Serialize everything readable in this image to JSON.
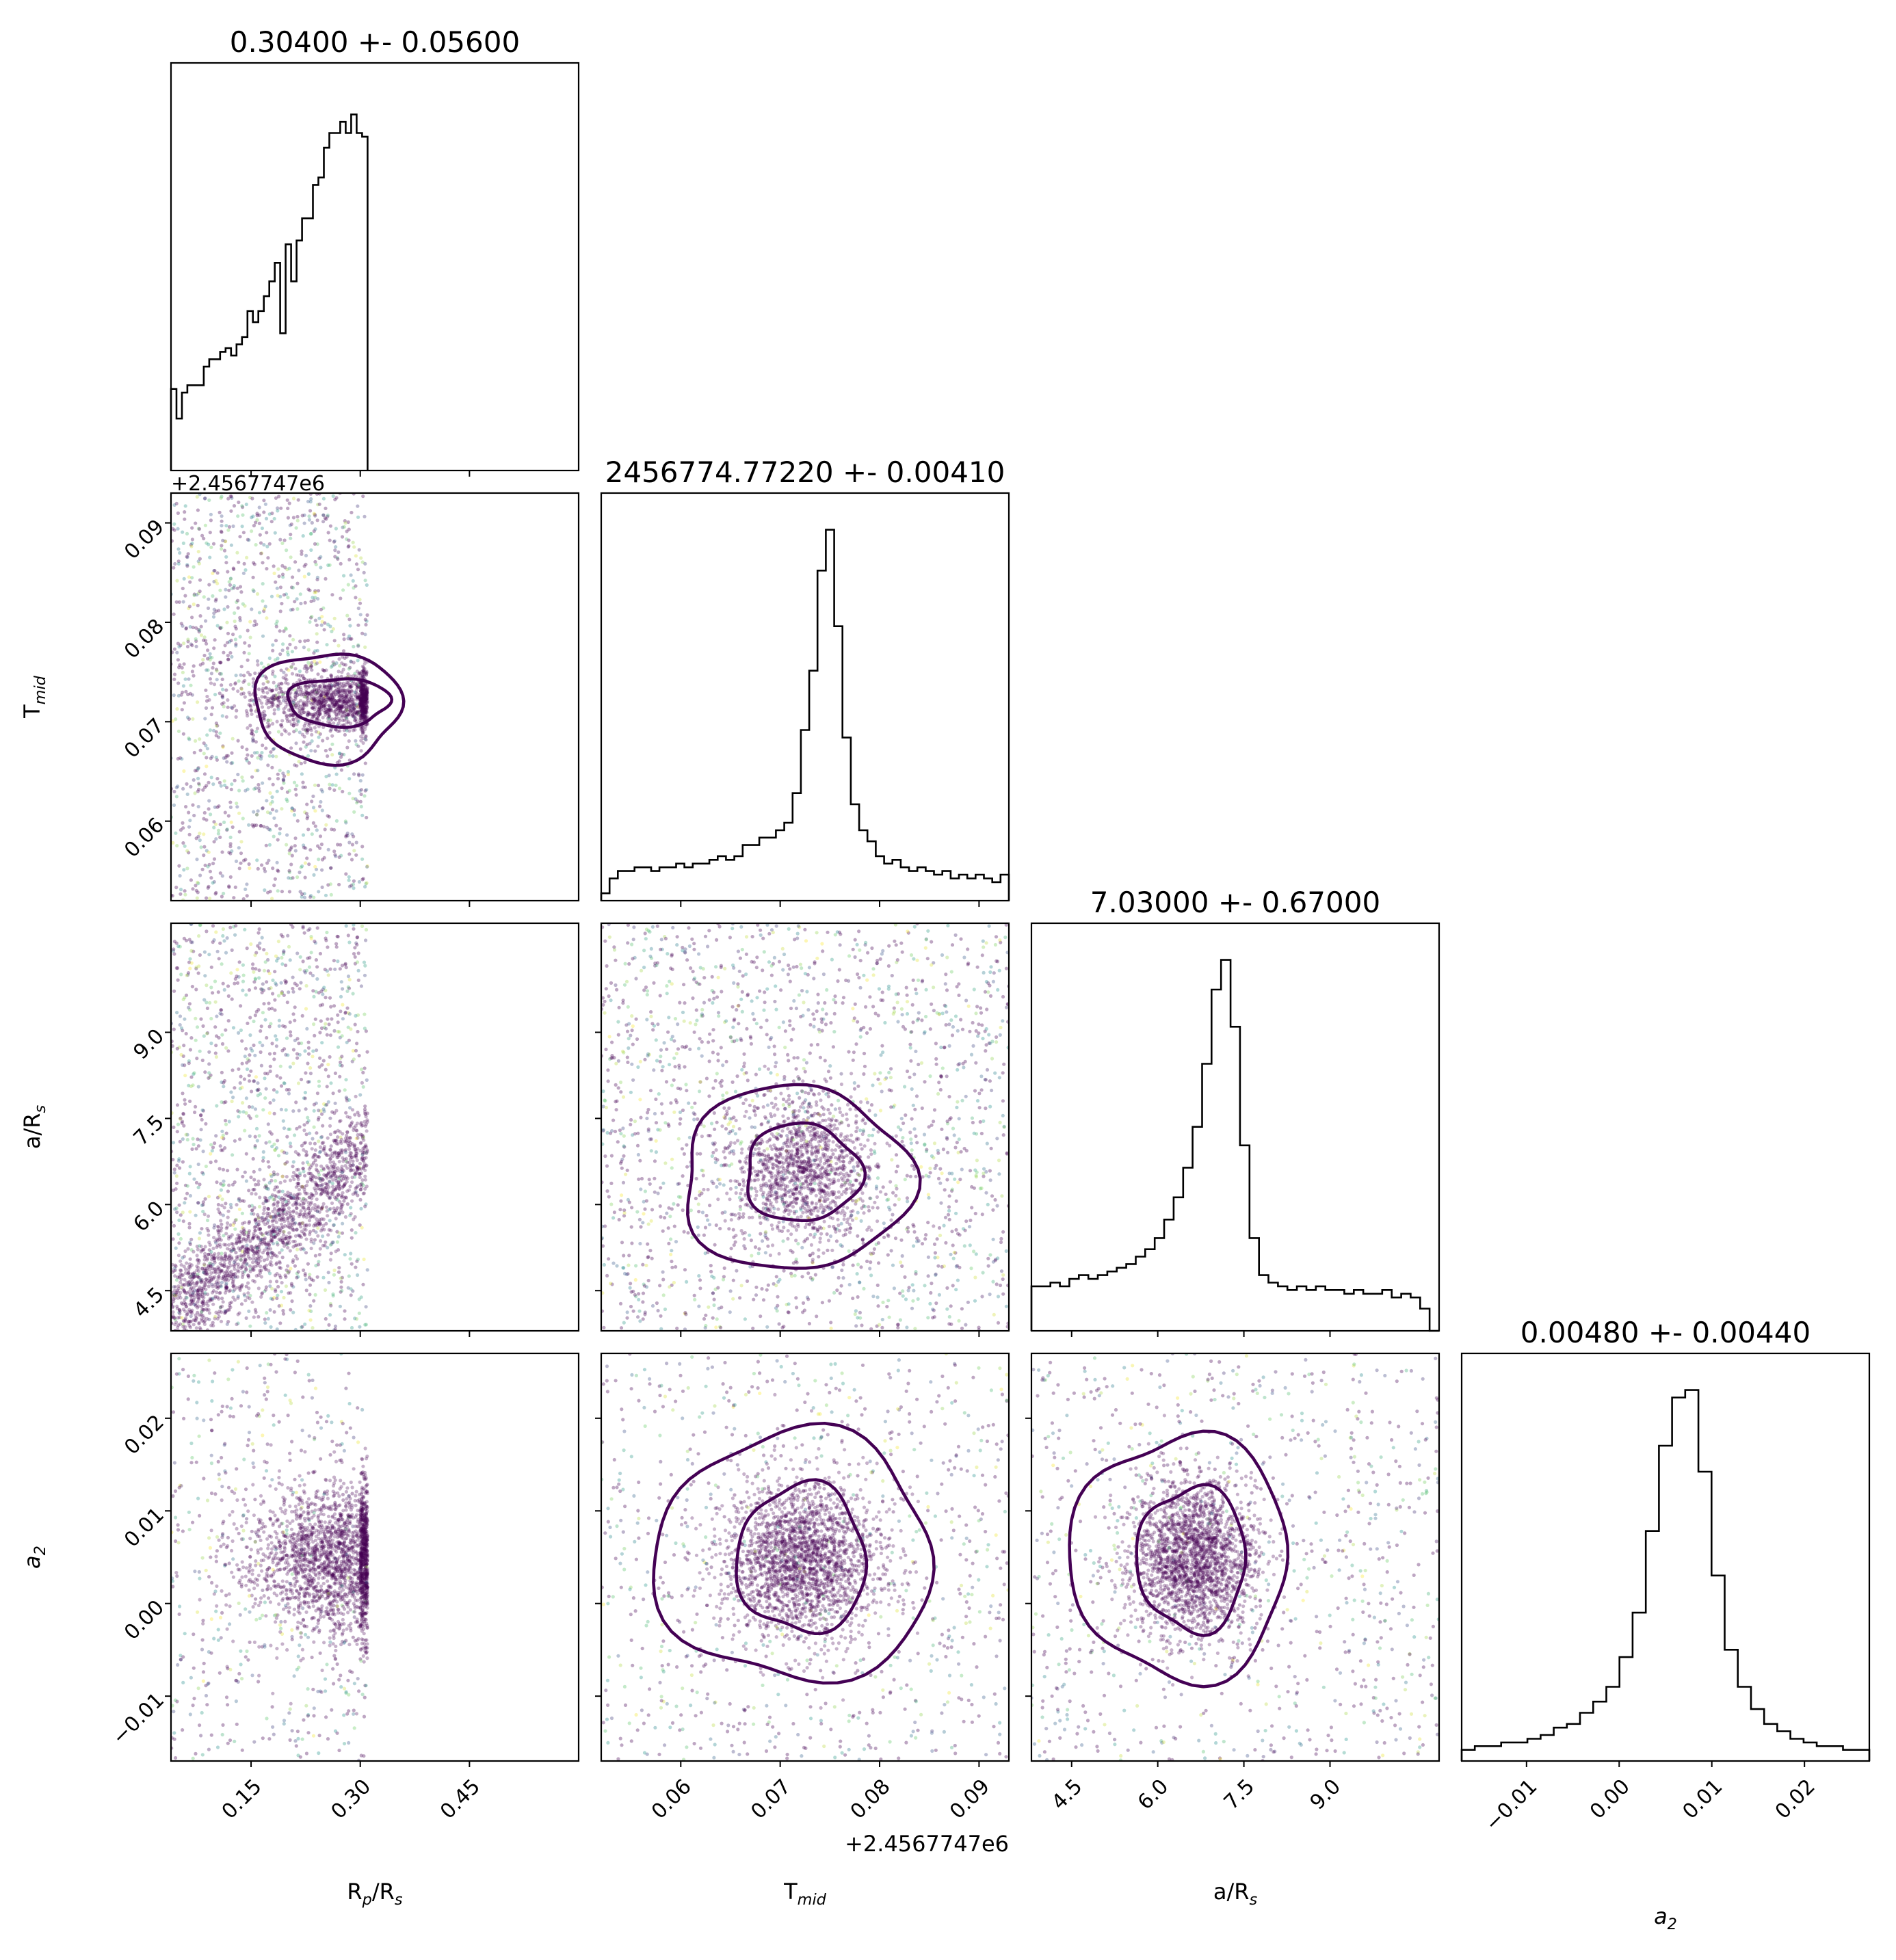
{
  "chart_data": {
    "type": "corner",
    "parameters": [
      {
        "key": "rp",
        "label": "R",
        "sub": "p",
        "label_tail": "/R",
        "tail_sub": "s",
        "title": "0.30400 +- 0.05600",
        "range": [
          0.04,
          0.6
        ],
        "ticks": [
          0.15,
          0.3,
          0.45
        ],
        "tick_labels": [
          "0.15",
          "0.30",
          "0.45"
        ],
        "offset": ""
      },
      {
        "key": "tmid",
        "label": "T",
        "sub": "mid",
        "label_tail": "",
        "tail_sub": "",
        "title": "2456774.77220 +- 0.00410",
        "range": [
          0.052,
          0.093
        ],
        "ticks": [
          0.06,
          0.07,
          0.08,
          0.09
        ],
        "tick_labels": [
          "0.06",
          "0.07",
          "0.08",
          "0.09"
        ],
        "offset": "+2.4567747e6"
      },
      {
        "key": "ars",
        "label": "a/R",
        "sub": "s",
        "label_tail": "",
        "tail_sub": "",
        "title": "7.03000 +- 0.67000",
        "range": [
          3.8,
          10.9
        ],
        "ticks": [
          4.5,
          6.0,
          7.5,
          9.0
        ],
        "tick_labels": [
          "4.5",
          "6.0",
          "7.5",
          "9.0"
        ],
        "offset": ""
      },
      {
        "key": "a2",
        "label": "a",
        "sub": "2",
        "label_tail": "",
        "tail_sub": "",
        "label_italic": true,
        "title": "0.00480 +- 0.00440",
        "range": [
          -0.017,
          0.027
        ],
        "ticks": [
          -0.01,
          0.0,
          0.01,
          0.02
        ],
        "tick_labels": [
          "−0.01",
          "0.00",
          "0.01",
          "0.02"
        ],
        "offset": ""
      }
    ],
    "histograms": [
      {
        "param": "rp",
        "bin_range": [
          0.04,
          0.31
        ],
        "counts": [
          0.22,
          0.14,
          0.21,
          0.23,
          0.23,
          0.23,
          0.28,
          0.3,
          0.3,
          0.32,
          0.33,
          0.31,
          0.34,
          0.36,
          0.43,
          0.4,
          0.43,
          0.47,
          0.51,
          0.56,
          0.37,
          0.61,
          0.51,
          0.62,
          0.68,
          0.68,
          0.77,
          0.79,
          0.87,
          0.91,
          0.91,
          0.94,
          0.91,
          0.96,
          0.91,
          0.9
        ]
      },
      {
        "param": "tmid",
        "bin_range": [
          0.052,
          0.093
        ],
        "counts": [
          0.02,
          0.06,
          0.08,
          0.08,
          0.09,
          0.09,
          0.08,
          0.09,
          0.09,
          0.1,
          0.09,
          0.1,
          0.1,
          0.11,
          0.12,
          0.11,
          0.12,
          0.15,
          0.15,
          0.17,
          0.17,
          0.19,
          0.21,
          0.29,
          0.46,
          0.62,
          0.89,
          1.0,
          0.74,
          0.44,
          0.26,
          0.19,
          0.16,
          0.12,
          0.1,
          0.11,
          0.09,
          0.08,
          0.09,
          0.08,
          0.07,
          0.08,
          0.06,
          0.07,
          0.06,
          0.07,
          0.06,
          0.05,
          0.07
        ]
      },
      {
        "param": "ars",
        "bin_range": [
          3.8,
          10.9
        ],
        "counts": [
          0.12,
          0.12,
          0.13,
          0.12,
          0.14,
          0.15,
          0.14,
          0.15,
          0.16,
          0.17,
          0.18,
          0.2,
          0.22,
          0.25,
          0.3,
          0.36,
          0.44,
          0.55,
          0.72,
          0.92,
          1.0,
          0.82,
          0.5,
          0.25,
          0.15,
          0.13,
          0.12,
          0.11,
          0.12,
          0.11,
          0.12,
          0.11,
          0.11,
          0.1,
          0.11,
          0.1,
          0.1,
          0.11,
          0.09,
          0.1,
          0.09,
          0.06,
          0.0
        ]
      },
      {
        "param": "a2",
        "bin_range": [
          -0.017,
          0.027
        ],
        "counts": [
          0.03,
          0.04,
          0.04,
          0.05,
          0.05,
          0.06,
          0.07,
          0.09,
          0.1,
          0.13,
          0.16,
          0.2,
          0.28,
          0.4,
          0.62,
          0.85,
          0.98,
          1.0,
          0.78,
          0.5,
          0.3,
          0.2,
          0.14,
          0.1,
          0.08,
          0.06,
          0.05,
          0.04,
          0.04,
          0.03,
          0.03
        ]
      }
    ],
    "scatter": [
      {
        "x": "rp",
        "y": "tmid",
        "n_points": 2600,
        "x_span": [
          0.04,
          0.31
        ],
        "mu": [
          0.27,
          0.0722
        ],
        "sigma": [
          0.06,
          0.0015
        ],
        "bg_fraction": 0.5,
        "contours": [
          {
            "level": 1,
            "center": [
              0.27,
              0.072
            ],
            "radius": [
              0.07,
              0.0024
            ]
          },
          {
            "level": 2,
            "center": [
              0.255,
              0.0715
            ],
            "radius": [
              0.1,
              0.0055
            ]
          }
        ]
      },
      {
        "x": "rp",
        "y": "ars",
        "n_points": 2800,
        "x_span": [
          0.04,
          0.31
        ],
        "trend": {
          "slope": 10.5,
          "intercept": 3.7
        },
        "sigma": [
          0.06,
          0.45
        ],
        "bg_fraction": 0.45
      },
      {
        "x": "tmid",
        "y": "ars",
        "n_points": 3000,
        "mu": [
          0.0722,
          6.6
        ],
        "sigma": [
          0.0035,
          0.6
        ],
        "bg_fraction": 0.6,
        "contours": [
          {
            "level": 1,
            "center": [
              0.0722,
              6.55
            ],
            "radius": [
              0.0058,
              0.85
            ]
          },
          {
            "level": 2,
            "center": [
              0.0715,
              6.45
            ],
            "radius": [
              0.0115,
              1.6
            ]
          }
        ]
      },
      {
        "x": "rp",
        "y": "a2",
        "n_points": 2600,
        "x_span": [
          0.04,
          0.31
        ],
        "mu": [
          0.27,
          0.0048
        ],
        "sigma": [
          0.06,
          0.0042
        ],
        "bg_fraction": 0.2
      },
      {
        "x": "tmid",
        "y": "a2",
        "n_points": 3000,
        "mu": [
          0.0722,
          0.0048
        ],
        "sigma": [
          0.004,
          0.0042
        ],
        "bg_fraction": 0.3,
        "contours": [
          {
            "level": 1,
            "center": [
              0.0722,
              0.0048
            ],
            "radius": [
              0.0065,
              0.008
            ]
          },
          {
            "level": 2,
            "center": [
              0.0715,
              0.005
            ],
            "radius": [
              0.014,
              0.0135
            ]
          }
        ]
      },
      {
        "x": "ars",
        "y": "a2",
        "n_points": 3000,
        "mu": [
          6.6,
          0.0048
        ],
        "sigma": [
          0.55,
          0.0042
        ],
        "bg_fraction": 0.3,
        "contours": [
          {
            "level": 1,
            "center": [
              6.6,
              0.0048
            ],
            "radius": [
              0.95,
              0.0078
            ]
          },
          {
            "level": 2,
            "center": [
              6.4,
              0.005
            ],
            "radius": [
              1.9,
              0.0132
            ]
          }
        ]
      }
    ],
    "colors": {
      "dominant": "#440154",
      "colormap": "viridis",
      "histogram": "#000000",
      "contour": "#440154"
    },
    "grid": false,
    "legend": "none"
  }
}
